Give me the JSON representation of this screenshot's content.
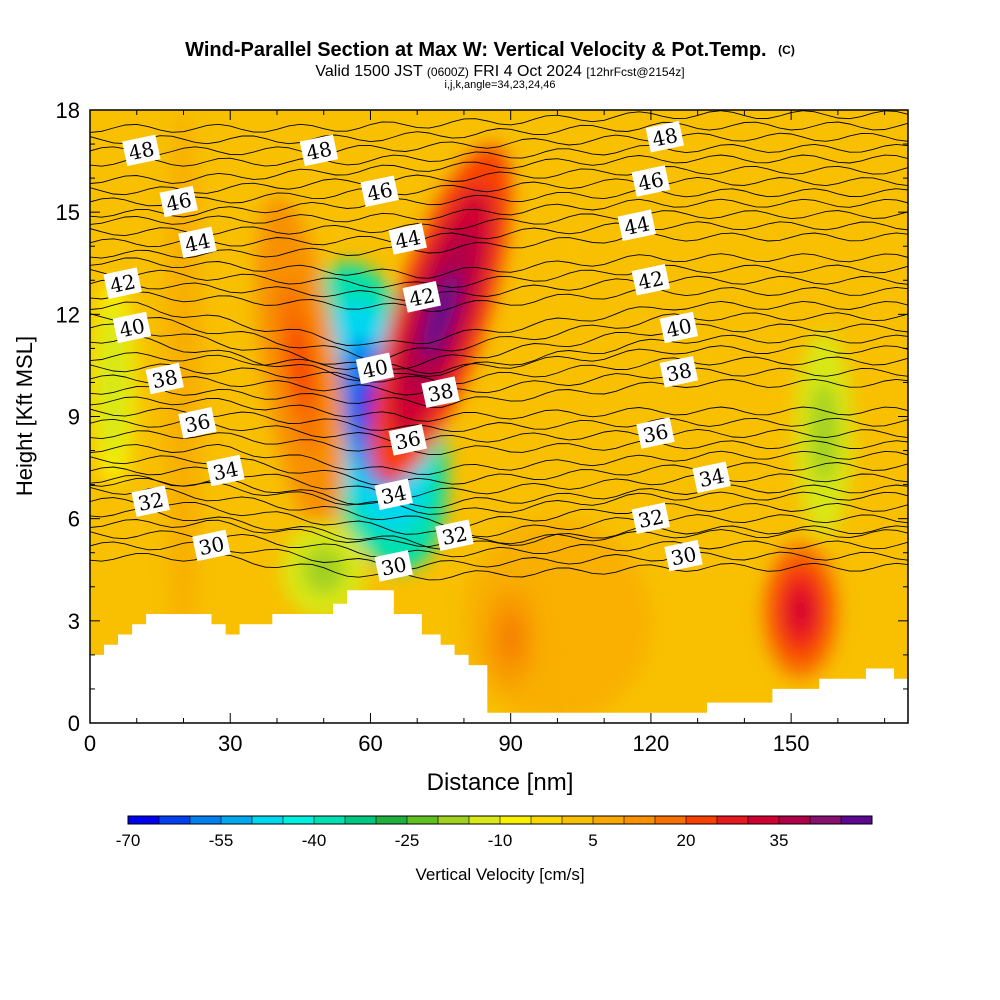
{
  "chart_data": {
    "type": "heatmap",
    "title": "Wind-Parallel Section at Max W: Vertical Velocity & Pot.Temp.",
    "title_mark": "(C)",
    "subtitle_valid": "Valid 1500 JST",
    "subtitle_utc": "(0600Z)",
    "subtitle_date": "FRI 4 Oct 2024",
    "subtitle_fcst": "[12hrFcst@2154z]",
    "subtitle_indices": "i,j,k,angle=34,23,24,46",
    "xlabel": "Distance [nm]",
    "ylabel": "Height [Kft MSL]",
    "xlim": [
      0,
      175
    ],
    "ylim": [
      0,
      18
    ],
    "xticks": [
      0,
      30,
      60,
      90,
      120,
      150
    ],
    "yticks": [
      0,
      3,
      6,
      9,
      12,
      15,
      18
    ],
    "colorbar": {
      "label": "Vertical Velocity [cm/s]",
      "tick_labels": [
        "-70",
        "-55",
        "-40",
        "-25",
        "-10",
        "5",
        "20",
        "35"
      ],
      "tick_values": [
        -70,
        -55,
        -40,
        -25,
        -10,
        5,
        20,
        35
      ],
      "levels": [
        -70,
        -65,
        -60,
        -55,
        -50,
        -45,
        -40,
        -35,
        -30,
        -25,
        -20,
        -15,
        -10,
        -5,
        0,
        5,
        10,
        15,
        20,
        25,
        30,
        35,
        40,
        45
      ],
      "colors": [
        "#0000f0",
        "#0040f0",
        "#0080f0",
        "#00a8f0",
        "#00d8f0",
        "#00f0e0",
        "#00e0b0",
        "#00c880",
        "#20b040",
        "#60c020",
        "#a0d020",
        "#d8e818",
        "#f8f000",
        "#f8d800",
        "#f8c000",
        "#f8a800",
        "#f89000",
        "#f87000",
        "#f84000",
        "#e81820",
        "#d00030",
        "#b00048",
        "#881070",
        "#5c0890"
      ]
    },
    "contour_field": "Potential temperature",
    "contour_labels": [
      {
        "value": "48",
        "x": 11,
        "y": 16.8
      },
      {
        "value": "48",
        "x": 49,
        "y": 16.8
      },
      {
        "value": "48",
        "x": 123,
        "y": 17.2
      },
      {
        "value": "46",
        "x": 19,
        "y": 15.3
      },
      {
        "value": "46",
        "x": 62,
        "y": 15.6
      },
      {
        "value": "46",
        "x": 120,
        "y": 15.9
      },
      {
        "value": "44",
        "x": 23,
        "y": 14.1
      },
      {
        "value": "44",
        "x": 68,
        "y": 14.2
      },
      {
        "value": "44",
        "x": 117,
        "y": 14.6
      },
      {
        "value": "42",
        "x": 7,
        "y": 12.9
      },
      {
        "value": "42",
        "x": 71,
        "y": 12.5
      },
      {
        "value": "42",
        "x": 120,
        "y": 13.0
      },
      {
        "value": "40",
        "x": 9,
        "y": 11.6
      },
      {
        "value": "40",
        "x": 61,
        "y": 10.4
      },
      {
        "value": "40",
        "x": 126,
        "y": 11.6
      },
      {
        "value": "38",
        "x": 16,
        "y": 10.1
      },
      {
        "value": "38",
        "x": 75,
        "y": 9.7
      },
      {
        "value": "38",
        "x": 126,
        "y": 10.3
      },
      {
        "value": "36",
        "x": 23,
        "y": 8.8
      },
      {
        "value": "36",
        "x": 68,
        "y": 8.3
      },
      {
        "value": "36",
        "x": 121,
        "y": 8.5
      },
      {
        "value": "34",
        "x": 29,
        "y": 7.4
      },
      {
        "value": "34",
        "x": 65,
        "y": 6.7
      },
      {
        "value": "34",
        "x": 133,
        "y": 7.2
      },
      {
        "value": "32",
        "x": 13,
        "y": 6.5
      },
      {
        "value": "32",
        "x": 78,
        "y": 5.5
      },
      {
        "value": "32",
        "x": 120,
        "y": 6.0
      },
      {
        "value": "30",
        "x": 26,
        "y": 5.2
      },
      {
        "value": "30",
        "x": 65,
        "y": 4.6
      },
      {
        "value": "30",
        "x": 127,
        "y": 4.9
      }
    ],
    "features": [
      {
        "type": "downdraft",
        "x": 61,
        "y": 9,
        "min_value": -70
      },
      {
        "type": "updraft",
        "x": 75,
        "y": 12,
        "max_value": 45
      },
      {
        "type": "updraft",
        "x": 90,
        "y": 2.5,
        "max_value": 25
      },
      {
        "type": "updraft",
        "x": 152,
        "y": 3.3,
        "max_value": 30
      },
      {
        "type": "updraft",
        "x": 45,
        "y": 10.5,
        "max_value": 20
      },
      {
        "type": "downdraft",
        "x": 157,
        "y": 8.5,
        "min_value": -20
      },
      {
        "type": "downdraft",
        "x": 5,
        "y": 10,
        "min_value": -15
      },
      {
        "type": "downdraft",
        "x": 50,
        "y": 4.5,
        "min_value": -20
      }
    ],
    "terrain": [
      [
        0,
        2
      ],
      [
        3,
        2
      ],
      [
        3,
        2.3
      ],
      [
        6,
        2.3
      ],
      [
        6,
        2.6
      ],
      [
        9,
        2.6
      ],
      [
        9,
        2.9
      ],
      [
        12,
        2.9
      ],
      [
        12,
        3.2
      ],
      [
        26,
        3.2
      ],
      [
        26,
        2.9
      ],
      [
        29,
        2.9
      ],
      [
        29,
        2.6
      ],
      [
        32,
        2.6
      ],
      [
        32,
        2.9
      ],
      [
        39,
        2.9
      ],
      [
        39,
        3.2
      ],
      [
        52,
        3.2
      ],
      [
        52,
        3.5
      ],
      [
        55,
        3.5
      ],
      [
        55,
        3.9
      ],
      [
        65,
        3.9
      ],
      [
        65,
        3.2
      ],
      [
        71,
        3.2
      ],
      [
        71,
        2.6
      ],
      [
        75,
        2.6
      ],
      [
        75,
        2.3
      ],
      [
        78,
        2.3
      ],
      [
        78,
        2
      ],
      [
        81,
        2
      ],
      [
        81,
        1.7
      ],
      [
        85,
        1.7
      ],
      [
        85,
        0.3
      ],
      [
        132,
        0.3
      ],
      [
        132,
        0.6
      ],
      [
        146,
        0.6
      ],
      [
        146,
        1
      ],
      [
        156,
        1
      ],
      [
        156,
        1.3
      ],
      [
        166,
        1.3
      ],
      [
        166,
        1.6
      ],
      [
        172,
        1.6
      ],
      [
        172,
        1.3
      ],
      [
        175,
        1.3
      ],
      [
        175,
        0
      ],
      [
        0,
        0
      ]
    ]
  }
}
